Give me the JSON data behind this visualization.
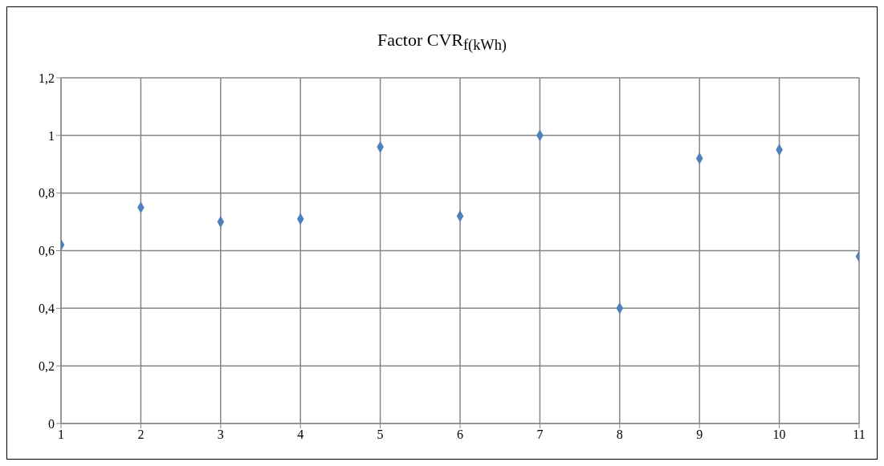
{
  "chart_data": {
    "type": "scatter",
    "title": "Factor CVR$_{f(kWh)}$",
    "x": [
      1,
      2,
      3,
      4,
      5,
      6,
      7,
      8,
      9,
      10,
      11
    ],
    "series": [
      {
        "color": "#4f81bd",
        "values": [
          0.62,
          0.75,
          0.7,
          0.71,
          0.96,
          0.72,
          1.0,
          0.4,
          0.92,
          0.95,
          0.58
        ]
      }
    ],
    "xlim": [
      1,
      11
    ],
    "xticks": [
      1,
      2,
      3,
      4,
      5,
      6,
      7,
      8,
      9,
      10,
      11
    ],
    "ylim": [
      0,
      1.2
    ],
    "yticks": [
      0,
      {
        "value": 0.2,
        "label": "0,2"
      },
      {
        "value": 0.4,
        "label": "0,4"
      },
      {
        "value": 0.6,
        "label": "0,6"
      },
      {
        "value": 0.8,
        "label": "0,8"
      },
      1,
      {
        "value": 1.2,
        "label": "1,2"
      }
    ],
    "grid": true,
    "marker": "diamond",
    "legend": false
  }
}
